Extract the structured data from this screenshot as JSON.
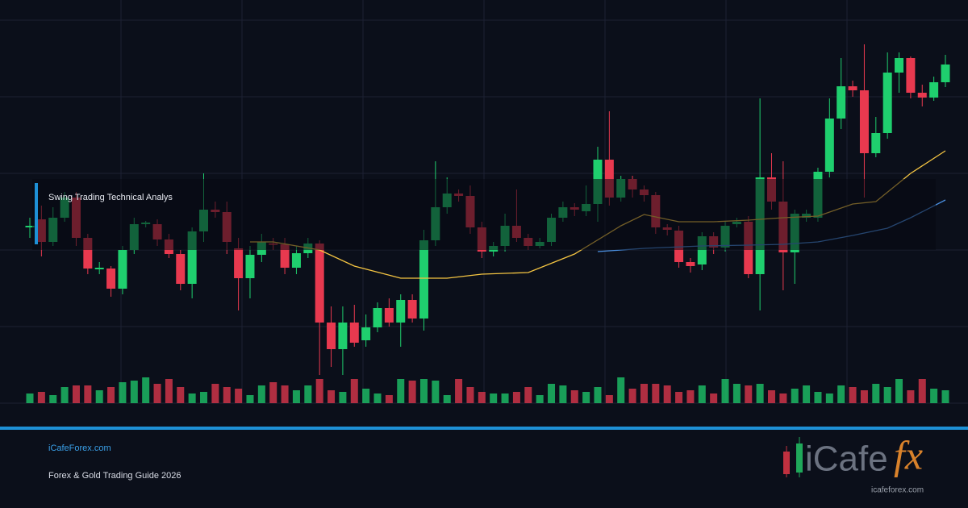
{
  "chart_data": {
    "type": "candlestick",
    "title": "Swing Trading Technical Analys",
    "ohlc": [
      [
        218,
        230,
        205,
        220
      ],
      [
        228,
        245,
        182,
        200
      ],
      [
        200,
        243,
        195,
        230
      ],
      [
        230,
        262,
        225,
        255
      ],
      [
        255,
        262,
        195,
        205
      ],
      [
        205,
        210,
        160,
        167
      ],
      [
        166,
        175,
        160,
        168
      ],
      [
        167,
        170,
        132,
        142
      ],
      [
        142,
        195,
        135,
        190
      ],
      [
        190,
        230,
        185,
        222
      ],
      [
        222,
        226,
        218,
        224
      ],
      [
        222,
        228,
        195,
        203
      ],
      [
        203,
        210,
        180,
        185
      ],
      [
        185,
        190,
        140,
        148
      ],
      [
        148,
        218,
        130,
        213
      ],
      [
        213,
        285,
        200,
        240
      ],
      [
        240,
        250,
        230,
        237
      ],
      [
        237,
        250,
        185,
        200
      ],
      [
        192,
        205,
        115,
        155
      ],
      [
        155,
        195,
        130,
        184
      ],
      [
        184,
        210,
        175,
        200
      ],
      [
        198,
        205,
        190,
        197
      ],
      [
        197,
        205,
        160,
        168
      ],
      [
        168,
        195,
        160,
        186
      ],
      [
        186,
        205,
        180,
        198
      ],
      [
        198,
        202,
        35,
        100
      ],
      [
        100,
        120,
        45,
        67
      ],
      [
        67,
        120,
        35,
        100
      ],
      [
        100,
        122,
        70,
        75
      ],
      [
        78,
        110,
        70,
        94
      ],
      [
        94,
        125,
        88,
        118
      ],
      [
        118,
        130,
        95,
        100
      ],
      [
        100,
        135,
        70,
        128
      ],
      [
        128,
        135,
        100,
        105
      ],
      [
        105,
        215,
        90,
        202
      ],
      [
        202,
        300,
        195,
        243
      ],
      [
        243,
        280,
        235,
        260
      ],
      [
        260,
        265,
        250,
        257
      ],
      [
        257,
        270,
        210,
        218
      ],
      [
        218,
        225,
        180,
        188
      ],
      [
        188,
        200,
        182,
        195
      ],
      [
        195,
        235,
        188,
        220
      ],
      [
        220,
        265,
        200,
        205
      ],
      [
        205,
        210,
        190,
        195
      ],
      [
        195,
        205,
        192,
        200
      ],
      [
        200,
        235,
        195,
        230
      ],
      [
        230,
        250,
        225,
        243
      ],
      [
        243,
        248,
        232,
        240
      ],
      [
        238,
        270,
        232,
        247
      ],
      [
        247,
        318,
        225,
        302
      ],
      [
        302,
        362,
        245,
        255
      ],
      [
        255,
        282,
        250,
        278
      ],
      [
        278,
        282,
        255,
        265
      ],
      [
        265,
        270,
        250,
        258
      ],
      [
        258,
        262,
        210,
        218
      ],
      [
        218,
        222,
        208,
        215
      ],
      [
        214,
        220,
        168,
        175
      ],
      [
        175,
        180,
        162,
        170
      ],
      [
        172,
        212,
        165,
        207
      ],
      [
        207,
        212,
        185,
        193
      ],
      [
        193,
        225,
        188,
        220
      ],
      [
        222,
        230,
        218,
        225
      ],
      [
        225,
        232,
        155,
        160
      ],
      [
        160,
        378,
        115,
        280
      ],
      [
        280,
        310,
        240,
        250
      ],
      [
        250,
        300,
        140,
        187
      ],
      [
        187,
        240,
        148,
        235
      ],
      [
        230,
        240,
        225,
        235
      ],
      [
        230,
        292,
        225,
        287
      ],
      [
        287,
        378,
        280,
        353
      ],
      [
        353,
        428,
        340,
        393
      ],
      [
        393,
        400,
        380,
        388
      ],
      [
        388,
        445,
        255,
        310
      ],
      [
        310,
        355,
        305,
        335
      ],
      [
        335,
        435,
        328,
        410
      ],
      [
        410,
        435,
        385,
        428
      ],
      [
        428,
        430,
        378,
        385
      ],
      [
        385,
        395,
        368,
        379
      ],
      [
        379,
        405,
        375,
        398
      ],
      [
        398,
        432,
        392,
        420
      ]
    ],
    "volume": [
      12,
      14,
      10,
      20,
      22,
      22,
      16,
      20,
      26,
      28,
      32,
      24,
      30,
      20,
      12,
      14,
      24,
      20,
      18,
      10,
      22,
      26,
      22,
      16,
      22,
      30,
      16,
      14,
      30,
      18,
      12,
      10,
      30,
      28,
      30,
      28,
      10,
      30,
      20,
      14,
      12,
      12,
      14,
      20,
      10,
      24,
      22,
      16,
      14,
      20,
      10,
      32,
      18,
      24,
      24,
      22,
      14,
      16,
      22,
      12,
      30,
      24,
      22,
      24,
      16,
      12,
      18,
      22,
      14,
      12,
      22,
      20,
      16,
      24,
      20,
      30,
      16,
      30,
      18,
      16
    ],
    "ylim": [
      0,
      475
    ],
    "vlim": [
      0,
      40
    ],
    "up_color": "#1fcf6e",
    "down_color": "#e8394f",
    "moving_averages": [
      {
        "color": "#f5c542",
        "x": [
          19,
          21,
          25,
          28,
          32,
          36,
          39,
          43,
          47,
          51,
          53,
          56,
          59,
          62,
          65,
          68,
          71,
          73,
          76,
          79
        ],
        "values": [
          200,
          200,
          190,
          170,
          155,
          155,
          160,
          162,
          185,
          220,
          234,
          225,
          225,
          227,
          230,
          232,
          247,
          250,
          285,
          313
        ]
      },
      {
        "color": "#4a8fe0",
        "x": [
          49,
          53,
          58,
          62,
          65,
          68,
          71,
          74,
          76,
          79
        ],
        "values": [
          188,
          192,
          195,
          196,
          197,
          200,
          208,
          217,
          230,
          252
        ]
      }
    ]
  },
  "footer": {
    "site": "iCafeForex.com",
    "subtitle": "Forex & Gold Trading Guide 2026"
  },
  "logo": {
    "brand": "iCafe",
    "accent": "fx",
    "url": "icafeforex.com"
  }
}
